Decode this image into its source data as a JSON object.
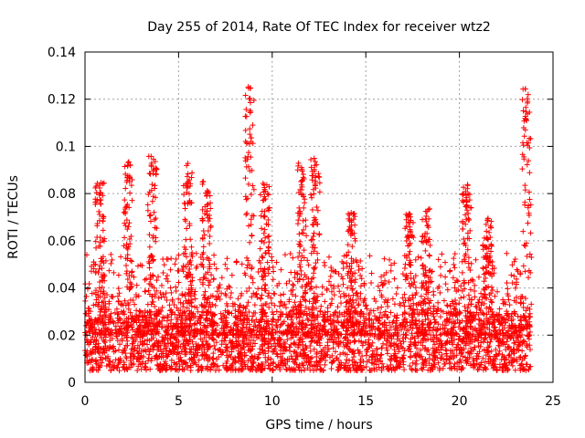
{
  "chart_data": {
    "type": "scatter",
    "title": "Day 255 of 2014, Rate Of TEC Index for receiver wtz2",
    "xlabel": "GPS time / hours",
    "ylabel": "ROTI / TECUs",
    "xlim": [
      0,
      25
    ],
    "ylim": [
      0,
      0.14
    ],
    "x_ticks": [
      0,
      5,
      10,
      15,
      20,
      25
    ],
    "x_tick_labels": [
      "0",
      "5",
      "10",
      "15",
      "20",
      "25"
    ],
    "y_ticks": [
      0,
      0.02,
      0.04,
      0.06,
      0.08,
      0.1,
      0.12,
      0.14
    ],
    "y_tick_labels": [
      "0",
      "0.02",
      "0.04",
      "0.06",
      "0.08",
      "0.1",
      "0.12",
      "0.14"
    ],
    "grid": true,
    "marker": "+",
    "color": "#ff0000",
    "x_data_range": [
      0,
      23.8
    ],
    "baseline_roti": [
      0.005,
      0.03
    ],
    "peaks": [
      {
        "x": 0.8,
        "y": 0.086
      },
      {
        "x": 2.3,
        "y": 0.095
      },
      {
        "x": 3.6,
        "y": 0.096
      },
      {
        "x": 5.5,
        "y": 0.093
      },
      {
        "x": 6.5,
        "y": 0.086
      },
      {
        "x": 8.8,
        "y": 0.127
      },
      {
        "x": 9.6,
        "y": 0.085
      },
      {
        "x": 11.6,
        "y": 0.093
      },
      {
        "x": 12.3,
        "y": 0.095
      },
      {
        "x": 14.2,
        "y": 0.072
      },
      {
        "x": 17.3,
        "y": 0.072
      },
      {
        "x": 18.2,
        "y": 0.074
      },
      {
        "x": 20.4,
        "y": 0.084
      },
      {
        "x": 21.5,
        "y": 0.07
      },
      {
        "x": 23.6,
        "y": 0.125
      }
    ]
  }
}
